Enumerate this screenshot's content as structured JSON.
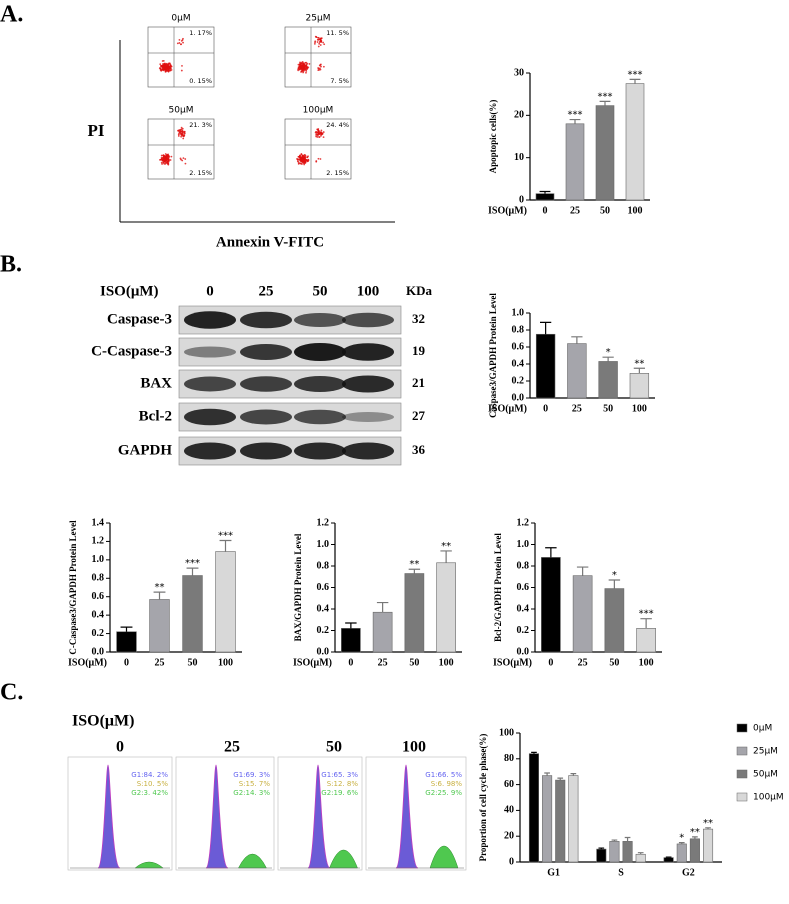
{
  "panels": {
    "a": "A.",
    "b": "B.",
    "c": "C."
  },
  "flow": {
    "y_label": "PI",
    "x_label": "Annexin V-FITC",
    "plots": [
      {
        "title": "0μM",
        "ur": "1. 17%",
        "lr": "0. 15%"
      },
      {
        "title": "25μM",
        "ur": "11. 5%",
        "lr": "7. 5%"
      },
      {
        "title": "50μM",
        "ur": "21. 3%",
        "lr": "2. 15%"
      },
      {
        "title": "100μM",
        "ur": "24. 4%",
        "lr": "2. 15%"
      }
    ]
  },
  "blot": {
    "header": "ISO(μM)",
    "doses": [
      "0",
      "25",
      "50",
      "100"
    ],
    "unit": "KDa",
    "rows": [
      {
        "label": "Caspase-3",
        "kda": "32"
      },
      {
        "label": "C-Caspase-3",
        "kda": "19"
      },
      {
        "label": "BAX",
        "kda": "21"
      },
      {
        "label": "Bcl-2",
        "kda": "27"
      },
      {
        "label": "GAPDH",
        "kda": "36"
      }
    ]
  },
  "cycle": {
    "header": "ISO(μM)",
    "doses": [
      "0",
      "25",
      "50",
      "100"
    ],
    "plots": [
      {
        "g1": "G1:84. 2%",
        "s": "S:10. 5%",
        "g2": "G2:3. 42%"
      },
      {
        "g1": "G1:69. 3%",
        "s": "S:15. 7%",
        "g2": "G2:14. 3%"
      },
      {
        "g1": "G1:65. 3%",
        "s": "S:12. 8%",
        "g2": "G2:19. 6%"
      },
      {
        "g1": "G1:66. 5%",
        "s": "S:6. 98%",
        "g2": "G2:25. 9%"
      }
    ]
  },
  "chart_data": [
    {
      "type": "bar",
      "y_label": "Apoptopic cells(%)",
      "x_label": "ISO(μM)",
      "categories": [
        "0",
        "25",
        "50",
        "100"
      ],
      "values": [
        1.5,
        18,
        22.3,
        27.5
      ],
      "errors": [
        0.5,
        1,
        1,
        1
      ],
      "annotations": [
        null,
        "***",
        "***",
        "***"
      ],
      "colors": [
        "#000000",
        "#a5a5ab",
        "#7a7a7a",
        "#d8d8d8"
      ],
      "ylim": [
        0,
        30
      ],
      "yticks": [
        0,
        10,
        20,
        30
      ]
    },
    {
      "type": "bar",
      "y_label": "Caspase3/GAPDH Protein Level",
      "x_label": "ISO(μM)",
      "categories": [
        "0",
        "25",
        "50",
        "100"
      ],
      "values": [
        0.75,
        0.64,
        0.43,
        0.29
      ],
      "errors": [
        0.14,
        0.08,
        0.05,
        0.06
      ],
      "annotations": [
        null,
        null,
        "*",
        "**"
      ],
      "colors": [
        "#000000",
        "#a5a5ab",
        "#7a7a7a",
        "#d8d8d8"
      ],
      "ylim": [
        0,
        1
      ],
      "yticks": [
        {
          "value": 0,
          "label": "0.0"
        },
        0.2,
        0.4,
        0.6,
        0.8,
        {
          "value": 1,
          "label": "1.0"
        }
      ]
    },
    {
      "type": "bar",
      "y_label": "C-Caspase3/GAPDH Protein Level",
      "x_label": "ISO(μM)",
      "categories": [
        "0",
        "25",
        "50",
        "100"
      ],
      "values": [
        0.22,
        0.57,
        0.83,
        1.09
      ],
      "errors": [
        0.05,
        0.08,
        0.08,
        0.12
      ],
      "annotations": [
        null,
        "**",
        "***",
        "***"
      ],
      "colors": [
        "#000000",
        "#a5a5ab",
        "#7a7a7a",
        "#d8d8d8"
      ],
      "ylim": [
        0,
        1.4
      ],
      "yticks": [
        {
          "value": 0,
          "label": "0.0"
        },
        0.2,
        0.4,
        0.6,
        0.8,
        {
          "value": 1,
          "label": "1.0"
        },
        1.2,
        1.4
      ]
    },
    {
      "type": "bar",
      "y_label": "BAX/GAPDH Protein Level",
      "x_label": "ISO(μM)",
      "categories": [
        "0",
        "25",
        "50",
        "100"
      ],
      "values": [
        0.22,
        0.37,
        0.73,
        0.83
      ],
      "errors": [
        0.05,
        0.09,
        0.04,
        0.11
      ],
      "annotations": [
        null,
        null,
        "**",
        "**"
      ],
      "colors": [
        "#000000",
        "#a5a5ab",
        "#7a7a7a",
        "#d8d8d8"
      ],
      "ylim": [
        0,
        1.2
      ],
      "yticks": [
        {
          "value": 0,
          "label": "0.0"
        },
        0.2,
        0.4,
        0.6,
        0.8,
        {
          "value": 1,
          "label": "1.0"
        },
        1.2
      ]
    },
    {
      "type": "bar",
      "y_label": "Bcl-2/GAPDH Protein Level",
      "x_label": "ISO(μM)",
      "categories": [
        "0",
        "25",
        "50",
        "100"
      ],
      "values": [
        0.88,
        0.71,
        0.59,
        0.22
      ],
      "errors": [
        0.09,
        0.08,
        0.08,
        0.09
      ],
      "annotations": [
        null,
        null,
        "*",
        "***"
      ],
      "colors": [
        "#000000",
        "#a5a5ab",
        "#7a7a7a",
        "#d8d8d8"
      ],
      "ylim": [
        0,
        1.2
      ],
      "yticks": [
        {
          "value": 0,
          "label": "0.0"
        },
        0.2,
        0.4,
        0.6,
        0.8,
        {
          "value": 1,
          "label": "1.0"
        },
        1.2
      ]
    },
    {
      "type": "bar",
      "y_label": "Proportion of cell cycle phase(%)",
      "categories": [
        "G1",
        "S",
        "G2"
      ],
      "series": [
        {
          "name": "0μM",
          "color": "#000000",
          "values": [
            84,
            10,
            3.4
          ],
          "errors": [
            1,
            0.8,
            0.4
          ],
          "annotations": [
            null,
            null,
            null
          ]
        },
        {
          "name": "25μM",
          "color": "#a5a5ab",
          "values": [
            67,
            16,
            14
          ],
          "errors": [
            2,
            1,
            1
          ],
          "annotations": [
            null,
            null,
            "*"
          ]
        },
        {
          "name": "50μM",
          "color": "#7a7a7a",
          "values": [
            63.5,
            16,
            18
          ],
          "errors": [
            1.5,
            3,
            1.5
          ],
          "annotations": [
            null,
            null,
            "**"
          ]
        },
        {
          "name": "100μM",
          "color": "#d8d8d8",
          "values": [
            67,
            6,
            25.5
          ],
          "errors": [
            1.5,
            1.2,
            1
          ],
          "annotations": [
            null,
            null,
            "**"
          ]
        }
      ],
      "ylim": [
        0,
        100
      ],
      "yticks": [
        0,
        20,
        40,
        60,
        80,
        100
      ],
      "legend": "right"
    }
  ]
}
